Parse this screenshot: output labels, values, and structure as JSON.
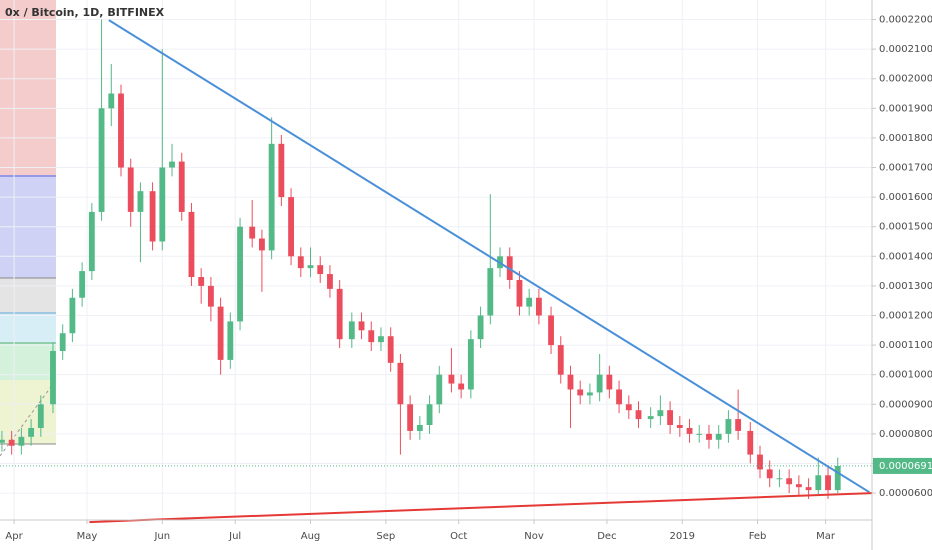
{
  "chart_data": {
    "type": "candlestick",
    "title": "0x / Bitcoin, 1D, BITFINEX",
    "up_color": "#53b987",
    "down_color": "#eb4d5c",
    "x": [
      -5,
      -1,
      3,
      7,
      11,
      16,
      20,
      24,
      28,
      32,
      36,
      40,
      44,
      48,
      52,
      57,
      61,
      65,
      69,
      73,
      77,
      81,
      85,
      89,
      93,
      98,
      102,
      106,
      110,
      114,
      118,
      122,
      126,
      130,
      134,
      139,
      143,
      147,
      151,
      155,
      159,
      163,
      167,
      171,
      175,
      180,
      184,
      188,
      192,
      196,
      200,
      204,
      208,
      212,
      216,
      221,
      225,
      229,
      233,
      237,
      241,
      245,
      249,
      253,
      257,
      262,
      266,
      270,
      274,
      278,
      282,
      286,
      290,
      294,
      298,
      303,
      307,
      311,
      315,
      319,
      323,
      327,
      331,
      335,
      339
    ],
    "open": [
      7.7e-05,
      7.8e-05,
      7.6e-05,
      7.9e-05,
      8.2e-05,
      9e-05,
      0.000108,
      0.000114,
      0.000126,
      0.000135,
      0.000155,
      0.00019,
      0.000195,
      0.00017,
      0.000155,
      0.000162,
      0.000145,
      0.00017,
      0.000172,
      0.000155,
      0.000133,
      0.00013,
      0.000123,
      0.000105,
      0.000118,
      0.00015,
      0.000146,
      0.000142,
      0.000178,
      0.00016,
      0.00014,
      0.000136,
      0.000137,
      0.000134,
      0.000129,
      0.000112,
      0.000118,
      0.000115,
      0.000111,
      0.000113,
      0.000104,
      9e-05,
      8.1e-05,
      8.3e-05,
      9e-05,
      0.0001,
      9.7e-05,
      9.5e-05,
      0.000112,
      0.00012,
      0.000136,
      0.00014,
      0.000132,
      0.000123,
      0.000126,
      0.00012,
      0.00011,
      0.0001,
      9.5e-05,
      9.3e-05,
      9.4e-05,
      0.0001,
      9.5e-05,
      9e-05,
      8.8e-05,
      8.5e-05,
      8.6e-05,
      8.8e-05,
      8.3e-05,
      8.2e-05,
      8e-05,
      8e-05,
      7.8e-05,
      8e-05,
      8.5e-05,
      8.1e-05,
      7.3e-05,
      6.8e-05,
      6.5e-05,
      6.5e-05,
      6.3e-05,
      6.2e-05,
      6.1e-05,
      6.6e-05,
      6.1e-05
    ],
    "high": [
      8.1e-05,
      8.1e-05,
      8.2e-05,
      8.5e-05,
      9.3e-05,
      0.000111,
      0.000117,
      0.000129,
      0.000138,
      0.000158,
      0.00022,
      0.000205,
      0.000198,
      0.000173,
      0.000165,
      0.000165,
      0.00021,
      0.000178,
      0.000175,
      0.000158,
      0.000136,
      0.000133,
      0.000126,
      0.000121,
      0.000153,
      0.000159,
      0.000149,
      0.000187,
      0.000181,
      0.000163,
      0.000143,
      0.000143,
      0.00014,
      0.000137,
      0.000132,
      0.000121,
      0.000121,
      0.000118,
      0.000116,
      0.000116,
      0.000107,
      9.3e-05,
      8.6e-05,
      9.3e-05,
      0.000103,
      0.000109,
      0.0001,
      0.000115,
      0.000123,
      0.000161,
      0.000143,
      0.000143,
      0.000135,
      0.000129,
      0.000129,
      0.000123,
      0.000113,
      0.000103,
      9.8e-05,
      9.7e-05,
      0.000107,
      0.000103,
      9.8e-05,
      9.3e-05,
      9.1e-05,
      8.9e-05,
      9.3e-05,
      9.1e-05,
      8.6e-05,
      8.5e-05,
      8.3e-05,
      8.3e-05,
      8.3e-05,
      8.8e-05,
      9.5e-05,
      8.4e-05,
      7.6e-05,
      7.1e-05,
      6.8e-05,
      6.8e-05,
      6.6e-05,
      6.5e-05,
      7.2e-05,
      6.9e-05,
      7.2e-05
    ],
    "low": [
      7.4e-05,
      7.3e-05,
      7.3e-05,
      7.6e-05,
      7.9e-05,
      8.7e-05,
      0.000105,
      0.000111,
      0.000123,
      0.000132,
      0.000152,
      0.000184,
      0.000167,
      0.00015,
      0.000138,
      0.000142,
      0.000142,
      0.000167,
      0.000152,
      0.00013,
      0.000124,
      0.000118,
      0.0001,
      0.000102,
      0.000115,
      0.000143,
      0.000128,
      0.000139,
      0.000157,
      0.000137,
      0.000133,
      0.000133,
      0.000131,
      0.000126,
      0.000109,
      0.000109,
      0.000112,
      0.000108,
      0.000108,
      0.000101,
      7.3e-05,
      7.8e-05,
      7.8e-05,
      8e-05,
      8.7e-05,
      9.4e-05,
      9.2e-05,
      9.2e-05,
      0.000109,
      0.000117,
      0.000133,
      0.000129,
      0.00012,
      0.00012,
      0.000117,
      0.000107,
      9.7e-05,
      8.2e-05,
      9e-05,
      9e-05,
      9.1e-05,
      9.2e-05,
      8.7e-05,
      8.5e-05,
      8.2e-05,
      8.2e-05,
      8.3e-05,
      8e-05,
      7.9e-05,
      7.7e-05,
      7.7e-05,
      7.5e-05,
      7.5e-05,
      7.7e-05,
      7.8e-05,
      7e-05,
      6.5e-05,
      6.2e-05,
      6.2e-05,
      6e-05,
      5.9e-05,
      5.8e-05,
      5.9e-05,
      5.8e-05,
      6e-05
    ],
    "close": [
      7.8e-05,
      7.6e-05,
      7.9e-05,
      8.2e-05,
      9e-05,
      0.000108,
      0.000114,
      0.000126,
      0.000135,
      0.000155,
      0.00019,
      0.000195,
      0.00017,
      0.000155,
      0.000162,
      0.000145,
      0.00017,
      0.000172,
      0.000155,
      0.000133,
      0.00013,
      0.000123,
      0.000105,
      0.000118,
      0.00015,
      0.000146,
      0.000142,
      0.000178,
      0.00016,
      0.00014,
      0.000136,
      0.000137,
      0.000134,
      0.000129,
      0.000112,
      0.000118,
      0.000115,
      0.000111,
      0.000113,
      0.000104,
      9e-05,
      8.1e-05,
      8.3e-05,
      9e-05,
      0.0001,
      9.7e-05,
      9.5e-05,
      0.000112,
      0.00012,
      0.000136,
      0.00014,
      0.000132,
      0.000123,
      0.000126,
      0.00012,
      0.00011,
      0.0001,
      9.5e-05,
      9.3e-05,
      9.4e-05,
      0.0001,
      9.5e-05,
      9e-05,
      8.8e-05,
      8.5e-05,
      8.6e-05,
      8.8e-05,
      8.3e-05,
      8.2e-05,
      8e-05,
      8e-05,
      7.8e-05,
      8e-05,
      8.5e-05,
      8.1e-05,
      7.3e-05,
      6.8e-05,
      6.5e-05,
      6.5e-05,
      6.3e-05,
      6.2e-05,
      6.1e-05,
      6.6e-05,
      6.1e-05,
      6.917e-05
    ],
    "xlim": [
      -5.8,
      353.1
    ],
    "xticks": [
      {
        "value": 0,
        "label": "Apr"
      },
      {
        "value": 30,
        "label": "May"
      },
      {
        "value": 61,
        "label": "Jun"
      },
      {
        "value": 91,
        "label": "Jul"
      },
      {
        "value": 122,
        "label": "Aug"
      },
      {
        "value": 153,
        "label": "Sep"
      },
      {
        "value": 183,
        "label": "Oct"
      },
      {
        "value": 214,
        "label": "Nov"
      },
      {
        "value": 244,
        "label": "Dec"
      },
      {
        "value": 275,
        "label": "2019"
      },
      {
        "value": 306,
        "label": "Feb"
      },
      {
        "value": 334,
        "label": "Mar"
      }
    ],
    "ylim": [
      5.09e-05,
      0.0002266
    ],
    "yticks": [
      {
        "value": 6e-05,
        "label": "0.00006000"
      },
      {
        "value": 7e-05,
        "label": "0.00007000"
      },
      {
        "value": 8e-05,
        "label": "0.00008000"
      },
      {
        "value": 9e-05,
        "label": "0.00009000"
      },
      {
        "value": 0.0001,
        "label": "0.00010000"
      },
      {
        "value": 0.00011,
        "label": "0.00011000"
      },
      {
        "value": 0.00012,
        "label": "0.00012000"
      },
      {
        "value": 0.00013,
        "label": "0.00013000"
      },
      {
        "value": 0.00014,
        "label": "0.00014000"
      },
      {
        "value": 0.00015,
        "label": "0.00015000"
      },
      {
        "value": 0.00016,
        "label": "0.00016000"
      },
      {
        "value": 0.00017,
        "label": "0.00017000"
      },
      {
        "value": 0.00018,
        "label": "0.00018000"
      },
      {
        "value": 0.00019,
        "label": "0.00019000"
      },
      {
        "value": 0.0002,
        "label": "0.00020000"
      },
      {
        "value": 0.00021,
        "label": "0.00021000"
      },
      {
        "value": 0.00022,
        "label": "0.00022000"
      }
    ],
    "grid": true,
    "trendlines": [
      {
        "color": "#4a90d9",
        "x": [
          39,
          352
        ],
        "y": [
          0.0002198,
          6.03e-05
        ]
      },
      {
        "color": "#e53935",
        "x": [
          31,
          353
        ],
        "y": [
          5.02e-05,
          6e-05
        ]
      }
    ]
  }
}
